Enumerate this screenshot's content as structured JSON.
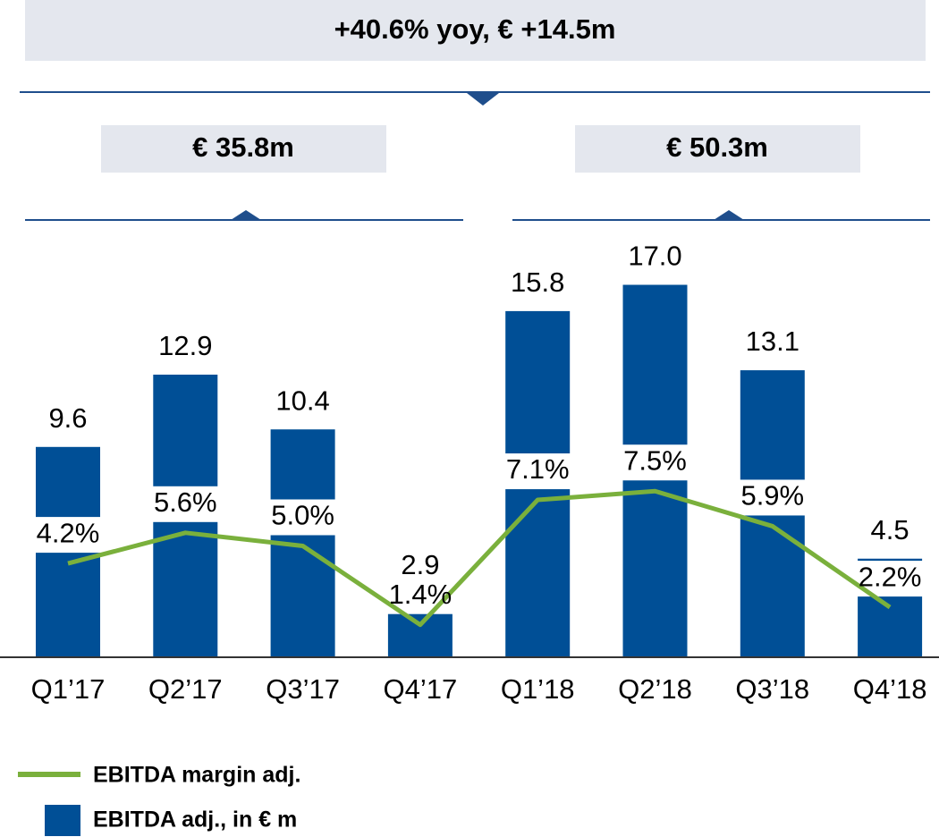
{
  "chart_data": {
    "type": "bar_line",
    "annotations": [
      "+40.6% yoy, € +14.5m",
      "€ 35.8m",
      "€ 50.3m"
    ],
    "categories": [
      "Q1’17",
      "Q2’17",
      "Q3’17",
      "Q4’17",
      "Q1’18",
      "Q2’18",
      "Q3’18",
      "Q4’18"
    ],
    "series": [
      {
        "name": "EBITDA adj., in € m",
        "type": "bar",
        "color": "#004f96",
        "values": [
          9.6,
          12.9,
          10.4,
          2.9,
          15.8,
          17.0,
          13.1,
          4.5
        ],
        "value_labels": [
          "9.6",
          "12.9",
          "10.4",
          "2.9",
          "15.8",
          "17.0",
          "13.1",
          "4.5"
        ]
      },
      {
        "name": "EBITDA margin adj.",
        "type": "line",
        "axis": "y2",
        "color": "#7ab03c",
        "values": [
          4.2,
          5.6,
          5.0,
          1.4,
          7.1,
          7.5,
          5.9,
          2.2
        ],
        "value_labels": [
          "4.2%",
          "5.6%",
          "5.0%",
          "1.4%",
          "7.1%",
          "7.5%",
          "5.9%",
          "2.2%"
        ]
      }
    ],
    "ylim": [
      0,
      20
    ],
    "y2lim": [
      0,
      20
    ]
  }
}
